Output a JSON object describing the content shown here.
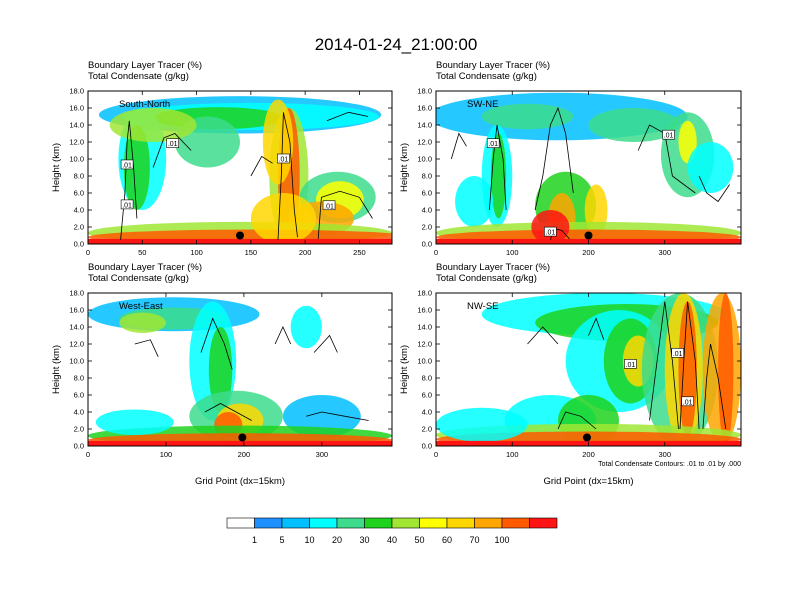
{
  "title": "2014-01-24_21:00:00",
  "colors": [
    "#ffffff",
    "#1e90ff",
    "#00bfff",
    "#00ffff",
    "#3cdc8c",
    "#1ed21e",
    "#a0e632",
    "#ffff00",
    "#ffd700",
    "#ffa500",
    "#ff5a00",
    "#ff1414"
  ],
  "colorbar": {
    "labels": [
      "1",
      "5",
      "10",
      "20",
      "30",
      "40",
      "50",
      "60",
      "70",
      "100"
    ]
  },
  "chart_data": [
    {
      "type": "heatmap",
      "header1": "Boundary Layer Tracer   (%)",
      "header2": "Total Condensate   (g/kg)",
      "label": "South-North",
      "ylabel": "Height (km)",
      "xlabel": "",
      "xlim": [
        0,
        280
      ],
      "ylim": [
        0,
        18
      ],
      "xticks": [
        "0",
        "50",
        "100",
        "150",
        "200",
        "250"
      ],
      "xtick_values": [
        0,
        50,
        100,
        150,
        200,
        250
      ],
      "yticks": [
        "0.0",
        "2.0",
        "4.0",
        "6.0",
        "8.0",
        "10.0",
        "12.0",
        "14.0",
        "16.0",
        "18.0"
      ],
      "marker": [
        140,
        1.0
      ],
      "contour_labels": [
        {
          "text": ".01",
          "x": 36,
          "y": 4.6
        },
        {
          "text": ".01",
          "x": 36,
          "y": 9.3
        },
        {
          "text": ".01",
          "x": 78,
          "y": 11.8
        },
        {
          "text": ".01",
          "x": 180,
          "y": 10.0
        },
        {
          "text": ".01",
          "x": 222,
          "y": 4.5
        }
      ],
      "note": ""
    },
    {
      "type": "heatmap",
      "header1": "Boundary Layer Tracer   (%)",
      "header2": "Total Condensate   (g/kg)",
      "label": "SW-NE",
      "ylabel": "Height (km)",
      "xlabel": "",
      "xlim": [
        0,
        400
      ],
      "ylim": [
        0,
        18
      ],
      "xticks": [
        "0",
        "100",
        "200",
        "300"
      ],
      "xtick_values": [
        0,
        100,
        200,
        300
      ],
      "yticks": [
        "0.0",
        "2.0",
        "4.0",
        "6.0",
        "8.0",
        "10.0",
        "12.0",
        "14.0",
        "16.0",
        "18.0"
      ],
      "marker": [
        200,
        1.0
      ],
      "contour_labels": [
        {
          "text": ".01",
          "x": 75,
          "y": 11.8
        },
        {
          "text": ".01",
          "x": 150,
          "y": 1.4
        },
        {
          "text": ".01",
          "x": 305,
          "y": 12.8
        }
      ],
      "note": ""
    },
    {
      "type": "heatmap",
      "header1": "Boundary Layer Tracer   (%)",
      "header2": "Total Condensate   (g/kg)",
      "label": "West-East",
      "ylabel": "Height (km)",
      "xlabel": "Grid Point (dx=15km)",
      "xlim": [
        0,
        390
      ],
      "ylim": [
        0,
        18
      ],
      "xticks": [
        "0",
        "100",
        "200",
        "300"
      ],
      "xtick_values": [
        0,
        100,
        200,
        300
      ],
      "yticks": [
        "0.0",
        "2.0",
        "4.0",
        "6.0",
        "8.0",
        "10.0",
        "12.0",
        "14.0",
        "16.0",
        "18.0"
      ],
      "marker": [
        198,
        1.0
      ],
      "contour_labels": [],
      "note": ""
    },
    {
      "type": "heatmap",
      "header1": "Boundary Layer Tracer   (%)",
      "header2": "Total Condensate   (g/kg)",
      "label": "NW-SE",
      "ylabel": "Height (km)",
      "xlabel": "Grid Point (dx=15km)",
      "xlim": [
        0,
        400
      ],
      "ylim": [
        0,
        18
      ],
      "xticks": [
        "0",
        "100",
        "200",
        "300"
      ],
      "xtick_values": [
        0,
        100,
        200,
        300
      ],
      "yticks": [
        "0.0",
        "2.0",
        "4.0",
        "6.0",
        "8.0",
        "10.0",
        "12.0",
        "14.0",
        "16.0",
        "18.0"
      ],
      "marker": [
        198,
        1.0
      ],
      "contour_labels": [
        {
          "text": ".01",
          "x": 255,
          "y": 9.6
        },
        {
          "text": ".01",
          "x": 317,
          "y": 10.9
        },
        {
          "text": ".01",
          "x": 330,
          "y": 5.2
        }
      ],
      "note": "Total Condensate Contours: .01 to .01 by .000"
    }
  ]
}
